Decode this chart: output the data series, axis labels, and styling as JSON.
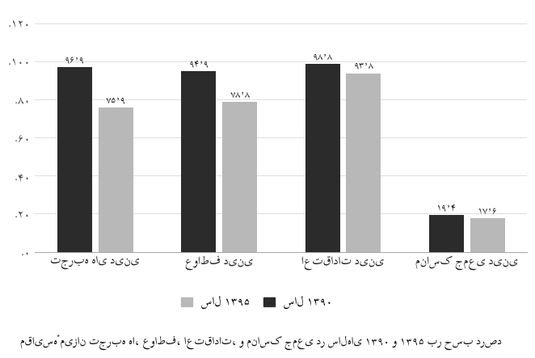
{
  "categories": [
    "تجربه های دینی",
    "عواطف دینی",
    "اعتقادات دینی",
    "مناسک جمعی دینی"
  ],
  "series_1390": [
    96.9,
    94.9,
    98.8,
    19.4
  ],
  "series_1395": [
    75.9,
    78.8,
    93.8,
    17.6
  ],
  "labels_1390": [
    "۹۶٬۹",
    "۹۴٬۹",
    "۹۸٬۸",
    "۱۹٬۴"
  ],
  "labels_1395": [
    "۷۵٬۹",
    "۷۸٬۸",
    "۹۳٬۸",
    "۱۷٬۶"
  ],
  "color_1390": "#2b2b2b",
  "color_1395": "#b8b8b8",
  "legend_1390": "سال ۱۳۹۰",
  "legend_1395": "سال ۱۳۹۵",
  "ytick_labels": [
    ".۰",
    ".۲۰",
    ".۴۰",
    ".۶۰",
    ".۸۰",
    ".۱۰۰",
    ".۱۲۰"
  ],
  "ytick_vals": [
    0,
    20,
    40,
    60,
    80,
    100,
    120
  ],
  "ylim": [
    0,
    128
  ],
  "title": "مقایسهٔ میزان تجربه ها، عواطف، اعتقادات، و مناسک جمعی در سالهای ۱۳۹۰ و ۱۳۹۵ بر حسب درصد",
  "bg_color": "#ffffff",
  "bar_width": 0.28,
  "bar_gap": 0.05
}
